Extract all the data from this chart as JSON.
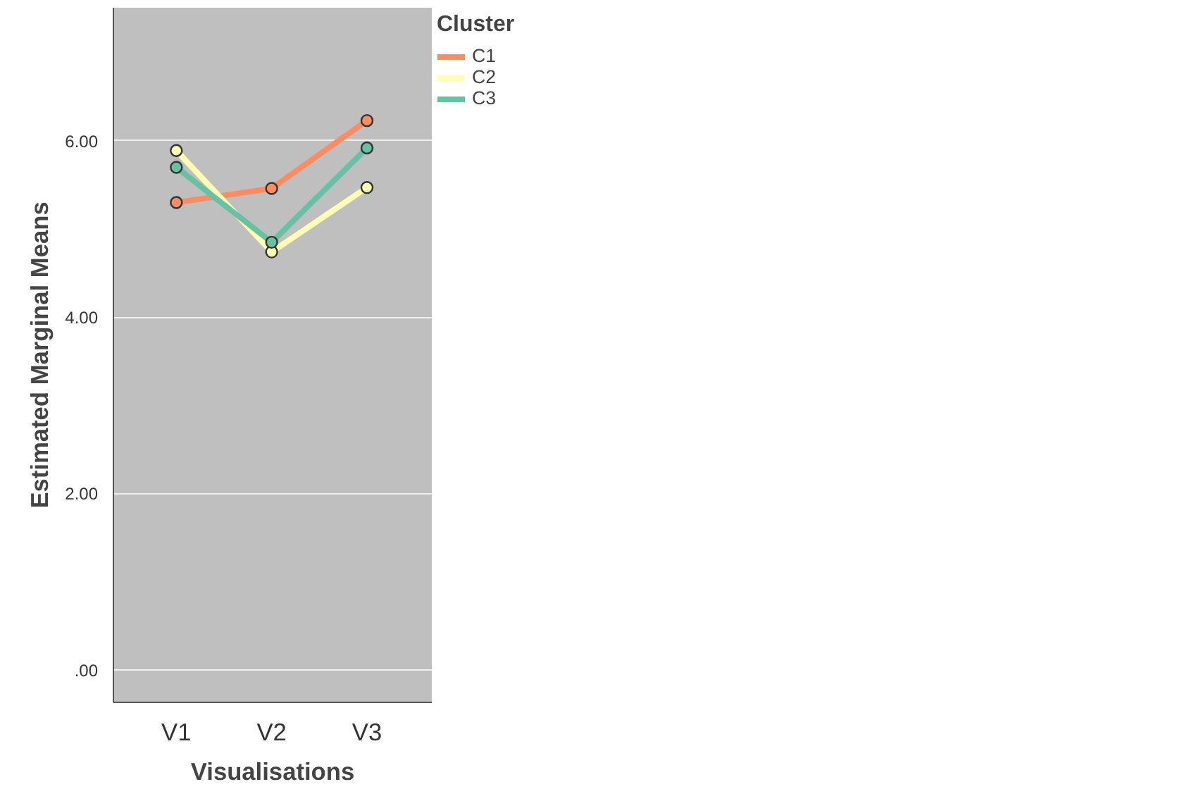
{
  "chart_data": {
    "type": "line",
    "xlabel": "Visualisations",
    "ylabel": "Estimated Marginal Means",
    "legend_title": "Cluster",
    "categories": [
      "V1",
      "V2",
      "V3"
    ],
    "series": [
      {
        "name": "C1",
        "color": "#fc8d62",
        "values": [
          5.3,
          5.46,
          6.23
        ]
      },
      {
        "name": "C2",
        "color": "#ffffb3",
        "values": [
          5.89,
          4.74,
          5.47
        ]
      },
      {
        "name": "C3",
        "color": "#66c2a5",
        "values": [
          5.7,
          4.85,
          5.92
        ]
      }
    ],
    "ylim": [
      -0.37,
      7.51
    ],
    "yticks": [
      {
        "value": 0,
        "label": ".00"
      },
      {
        "value": 2,
        "label": "2.00"
      },
      {
        "value": 4,
        "label": "4.00"
      },
      {
        "value": 6,
        "label": "6.00"
      }
    ],
    "grid": "y",
    "legend": "top right",
    "marker": "circle",
    "line_style": "solid"
  }
}
